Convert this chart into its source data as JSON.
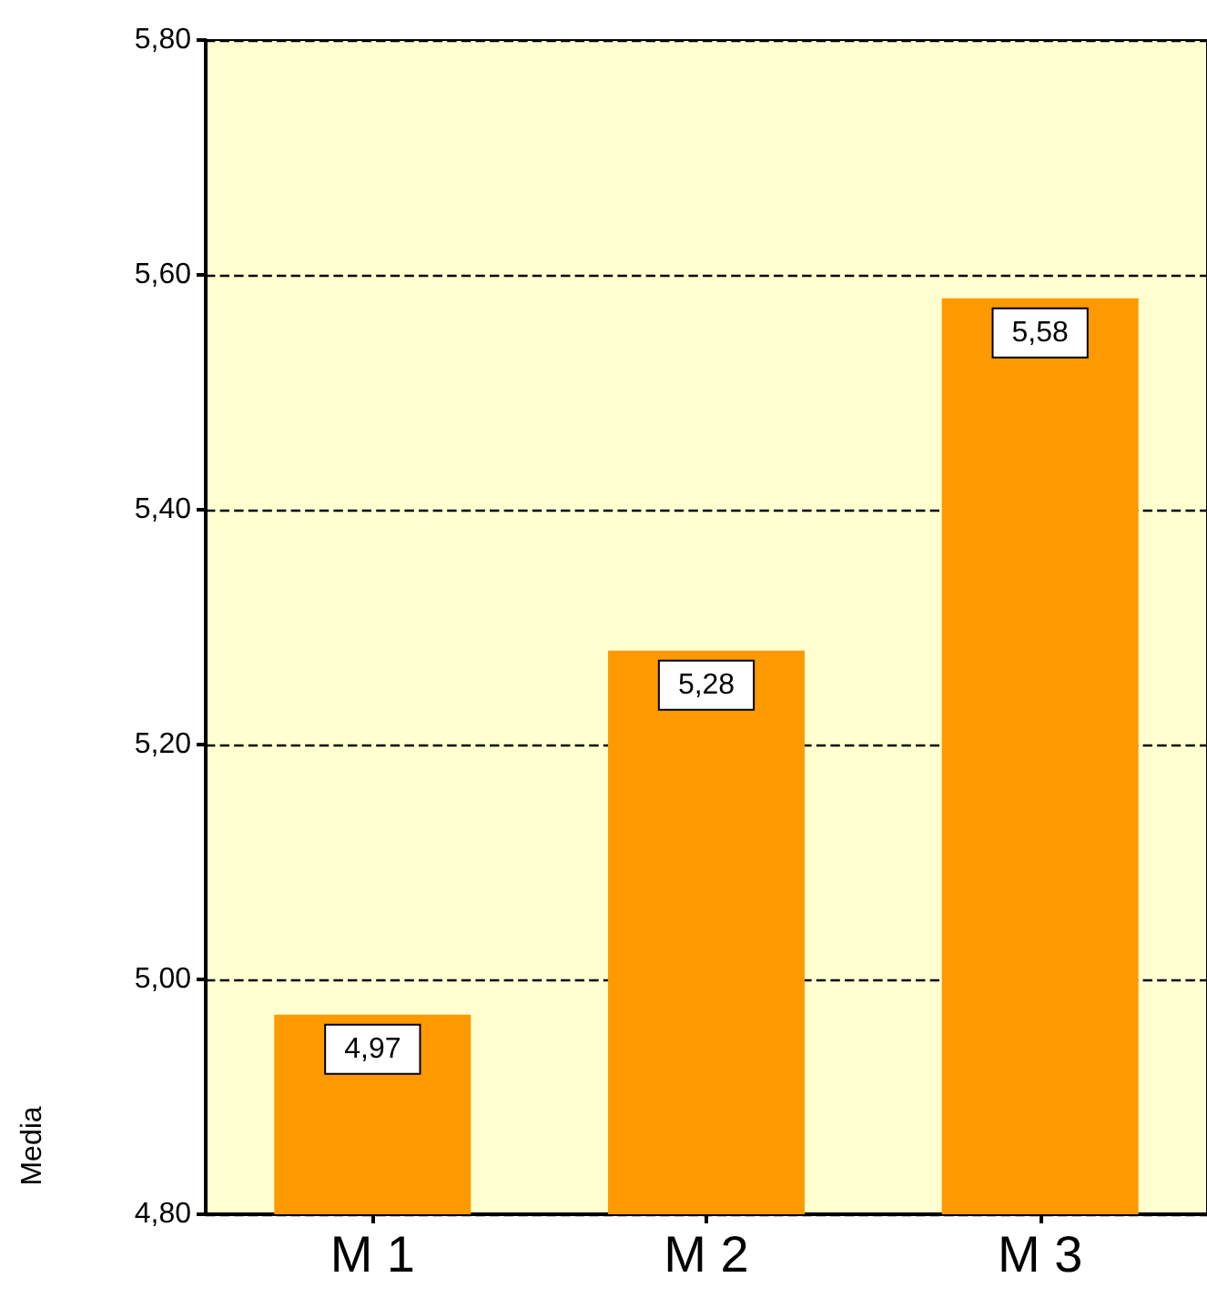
{
  "chart_data": {
    "type": "bar",
    "ylabel": "Media",
    "categories": [
      "M 1",
      "M 2",
      "M 3"
    ],
    "values": [
      4.97,
      5.28,
      5.58
    ],
    "value_labels": [
      "4,97",
      "5,28",
      "5,58"
    ],
    "color": "#ff9900",
    "ylim": [
      4.8,
      5.8
    ],
    "yticks": [
      {
        "value": 4.8,
        "label": "4,80"
      },
      {
        "value": 5.0,
        "label": "5,00"
      },
      {
        "value": 5.2,
        "label": "5,20"
      },
      {
        "value": 5.4,
        "label": "5,40"
      },
      {
        "value": 5.6,
        "label": "5,60"
      },
      {
        "value": 5.8,
        "label": "5,80"
      }
    ],
    "grid": "y"
  }
}
